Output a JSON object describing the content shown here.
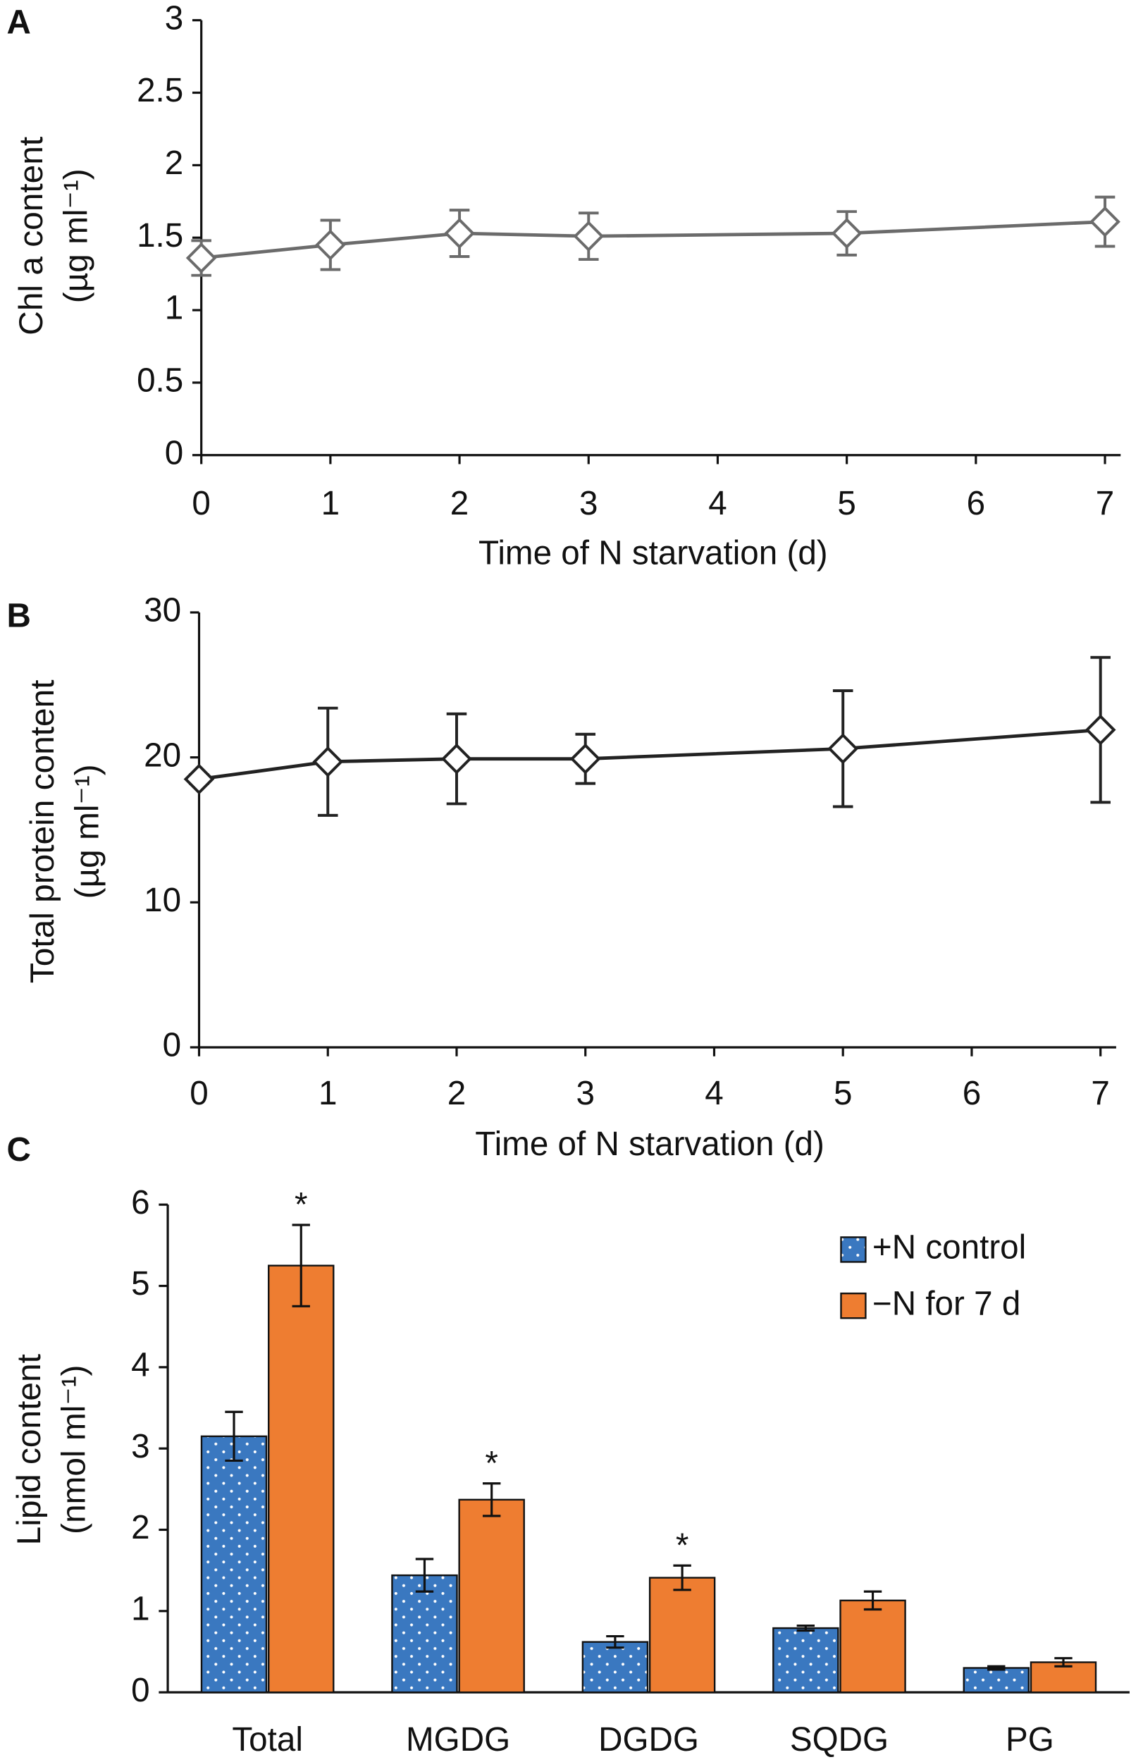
{
  "chart_data": [
    {
      "type": "line",
      "panel": "A",
      "x_label": "Time of N starvation (d)",
      "y_label": [
        "Chl a content",
        "(µg ml⁻¹)"
      ],
      "x": [
        0,
        1,
        2,
        3,
        5,
        7
      ],
      "values": [
        1.36,
        1.45,
        1.53,
        1.51,
        1.53,
        1.61
      ],
      "errors": [
        0.12,
        0.17,
        0.16,
        0.16,
        0.15,
        0.17
      ],
      "color": "#6b6b6b",
      "xlim": [
        0,
        7
      ],
      "xticks": [
        0,
        1,
        2,
        3,
        4,
        5,
        6,
        7
      ],
      "ylim": [
        0,
        3
      ],
      "yticks": [
        0,
        0.5,
        1,
        1.5,
        2,
        2.5,
        3
      ]
    },
    {
      "type": "line",
      "panel": "B",
      "x_label": "Time of N starvation (d)",
      "y_label": [
        "Total protein content",
        "(µg ml⁻¹)"
      ],
      "x": [
        0,
        1,
        2,
        3,
        5,
        7
      ],
      "values": [
        18.5,
        19.7,
        19.9,
        19.9,
        20.6,
        21.9
      ],
      "errors": [
        0.3,
        3.7,
        3.1,
        1.7,
        4.0,
        5.0
      ],
      "color": "#222222",
      "xlim": [
        0,
        7
      ],
      "xticks": [
        0,
        1,
        2,
        3,
        4,
        5,
        6,
        7
      ],
      "ylim": [
        0,
        30
      ],
      "yticks": [
        0,
        10,
        20,
        30
      ]
    },
    {
      "type": "bar",
      "panel": "C",
      "y_label": [
        "Lipid content",
        "(nmol ml⁻¹)"
      ],
      "categories": [
        "Total",
        "MGDG",
        "DGDG",
        "SQDG",
        "PG"
      ],
      "series": [
        {
          "name": "+N control",
          "color": "#3a78c0",
          "values": [
            3.15,
            1.44,
            0.62,
            0.79,
            0.3
          ],
          "errors": [
            0.3,
            0.2,
            0.07,
            0.03,
            0.02
          ]
        },
        {
          "name": "−N for 7 d",
          "color": "#ee7d31",
          "values": [
            5.25,
            2.37,
            1.41,
            1.13,
            0.37
          ],
          "errors": [
            0.5,
            0.2,
            0.15,
            0.11,
            0.05
          ],
          "significance": [
            "*",
            "*",
            "*",
            null,
            null
          ]
        }
      ],
      "ylim": [
        0,
        6
      ],
      "yticks": [
        0,
        1,
        2,
        3,
        4,
        5,
        6
      ],
      "legend": "upper right"
    }
  ]
}
